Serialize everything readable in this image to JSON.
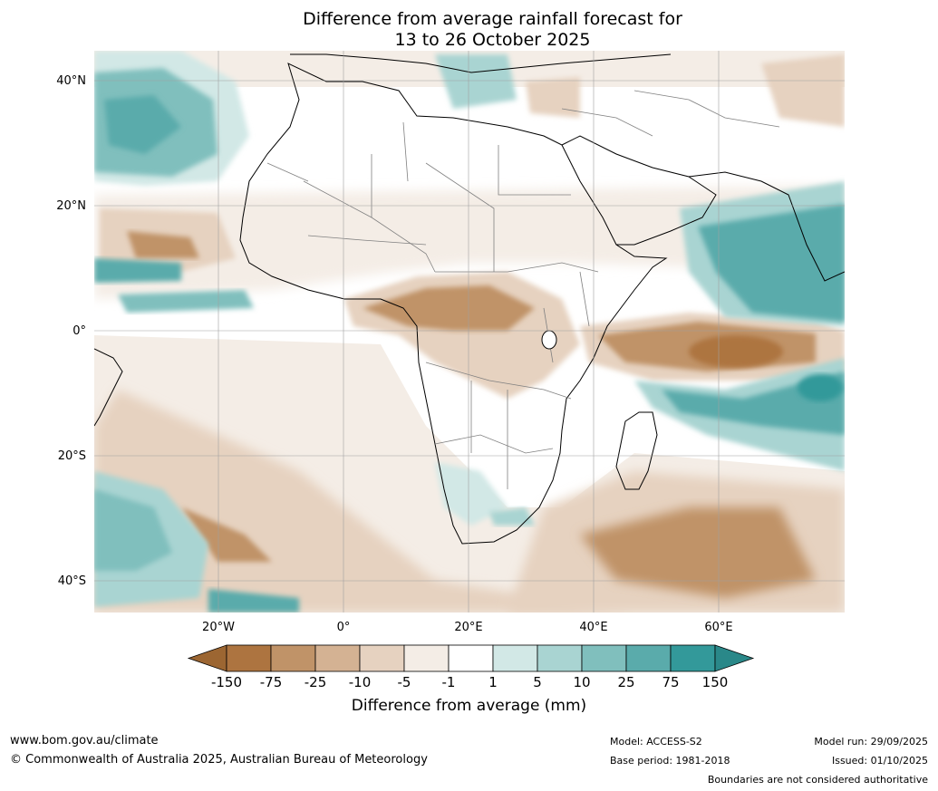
{
  "title": {
    "line1": "Difference from average rainfall forecast for",
    "line2": "13 to 26 October 2025"
  },
  "map": {
    "lat_labels": [
      "40°N",
      "20°N",
      "0°",
      "20°S",
      "40°S"
    ],
    "lon_labels": [
      "20°W",
      "0°",
      "20°E",
      "40°E",
      "60°E"
    ]
  },
  "colorbar": {
    "title": "Difference from average (mm)",
    "ticks": [
      "-150",
      "-75",
      "-25",
      "-10",
      "-5",
      "-1",
      "1",
      "5",
      "10",
      "25",
      "75",
      "150"
    ],
    "colors": [
      "#9c6632",
      "#ad7440",
      "#c09368",
      "#d4b293",
      "#e6d2c0",
      "#f4ede6",
      "#ffffff",
      "#d2e8e6",
      "#a9d4d2",
      "#80bfbd",
      "#5aabab",
      "#33999a",
      "#2a8889"
    ]
  },
  "footer": {
    "website": "www.bom.gov.au/climate",
    "copyright": "© Commonwealth of Australia 2025, Australian Bureau of Meteorology",
    "model": "Model: ACCESS-S2",
    "base_period": "Base period: 1981-2018",
    "model_run": "Model run: 29/09/2025",
    "issued": "Issued: 01/10/2025",
    "disclaimer": "Boundaries are not considered authoritative"
  }
}
